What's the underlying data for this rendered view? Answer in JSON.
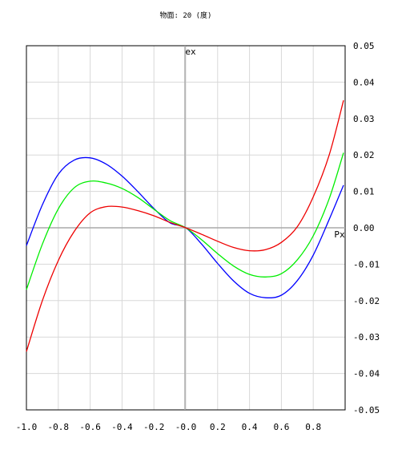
{
  "chart_data": {
    "type": "line",
    "title": "物面: 20 (度)",
    "ylabel": "ex",
    "xlabel": "Px",
    "xlim": [
      -1.0,
      1.0
    ],
    "ylim": [
      -0.05,
      0.05
    ],
    "x_ticks": [
      "-1.0",
      "-0.8",
      "-0.6",
      "-0.4",
      "-0.2",
      "-0.0",
      "0.2",
      "0.4",
      "0.6",
      "0.8"
    ],
    "y_ticks": [
      "0.05",
      "0.04",
      "0.03",
      "0.02",
      "0.01",
      "0.00",
      "-0.01",
      "-0.02",
      "-0.03",
      "-0.04",
      "-0.05"
    ],
    "grid": true,
    "x": [
      -1.0,
      -0.9,
      -0.8,
      -0.7,
      -0.6,
      -0.5,
      -0.4,
      -0.3,
      -0.2,
      -0.1,
      0.0,
      0.1,
      0.2,
      0.3,
      0.4,
      0.5,
      0.6,
      0.7,
      0.8,
      0.9,
      0.99
    ],
    "series": [
      {
        "color": "#0000ff",
        "values": [
          -0.0049,
          0.0063,
          0.0147,
          0.0186,
          0.0192,
          0.0175,
          0.0142,
          0.0099,
          0.0053,
          0.0014,
          0.0,
          -0.0045,
          -0.0098,
          -0.0146,
          -0.018,
          -0.0192,
          -0.0185,
          -0.0145,
          -0.0075,
          0.0023,
          0.0117
        ]
      },
      {
        "color": "#00ee00",
        "values": [
          -0.017,
          -0.0045,
          0.0052,
          0.011,
          0.0128,
          0.0123,
          0.0108,
          0.0083,
          0.0051,
          0.002,
          0.0,
          -0.0033,
          -0.0071,
          -0.0105,
          -0.0128,
          -0.0135,
          -0.0126,
          -0.0088,
          -0.0022,
          0.008,
          0.0206
        ]
      },
      {
        "color": "#ee0000",
        "values": [
          -0.034,
          -0.02,
          -0.009,
          -0.001,
          0.0041,
          0.0058,
          0.0057,
          0.0047,
          0.0033,
          0.0015,
          0.0,
          -0.0018,
          -0.0037,
          -0.0054,
          -0.0063,
          -0.006,
          -0.004,
          0.0003,
          0.0085,
          0.02,
          0.035
        ]
      }
    ]
  }
}
